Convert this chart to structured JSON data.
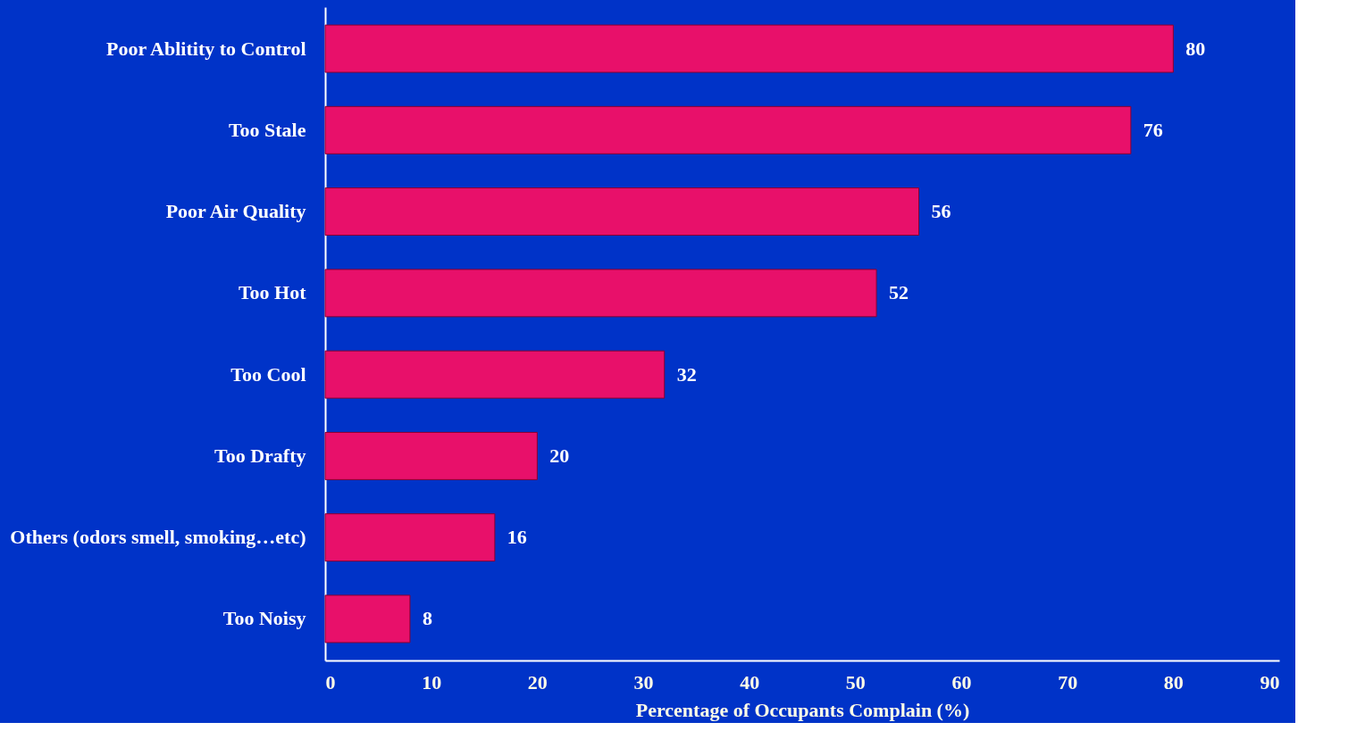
{
  "chart_data": {
    "type": "bar",
    "orientation": "horizontal",
    "xlabel": "Percentage of Occupants Complain (%)",
    "categories": [
      "Poor Ablitity to Control",
      "Too Stale",
      "Poor Air Quality",
      "Too Hot",
      "Too Cool",
      "Too Drafty",
      "Others (odors smell, smoking…etc)",
      "Too Noisy"
    ],
    "values": [
      80,
      76,
      56,
      52,
      32,
      20,
      16,
      8
    ],
    "color": "#e8106a",
    "xlim": [
      0,
      90
    ],
    "xticks": [
      0,
      10,
      20,
      30,
      40,
      50,
      60,
      70,
      80,
      90
    ],
    "grid": false,
    "data_labels": true
  }
}
